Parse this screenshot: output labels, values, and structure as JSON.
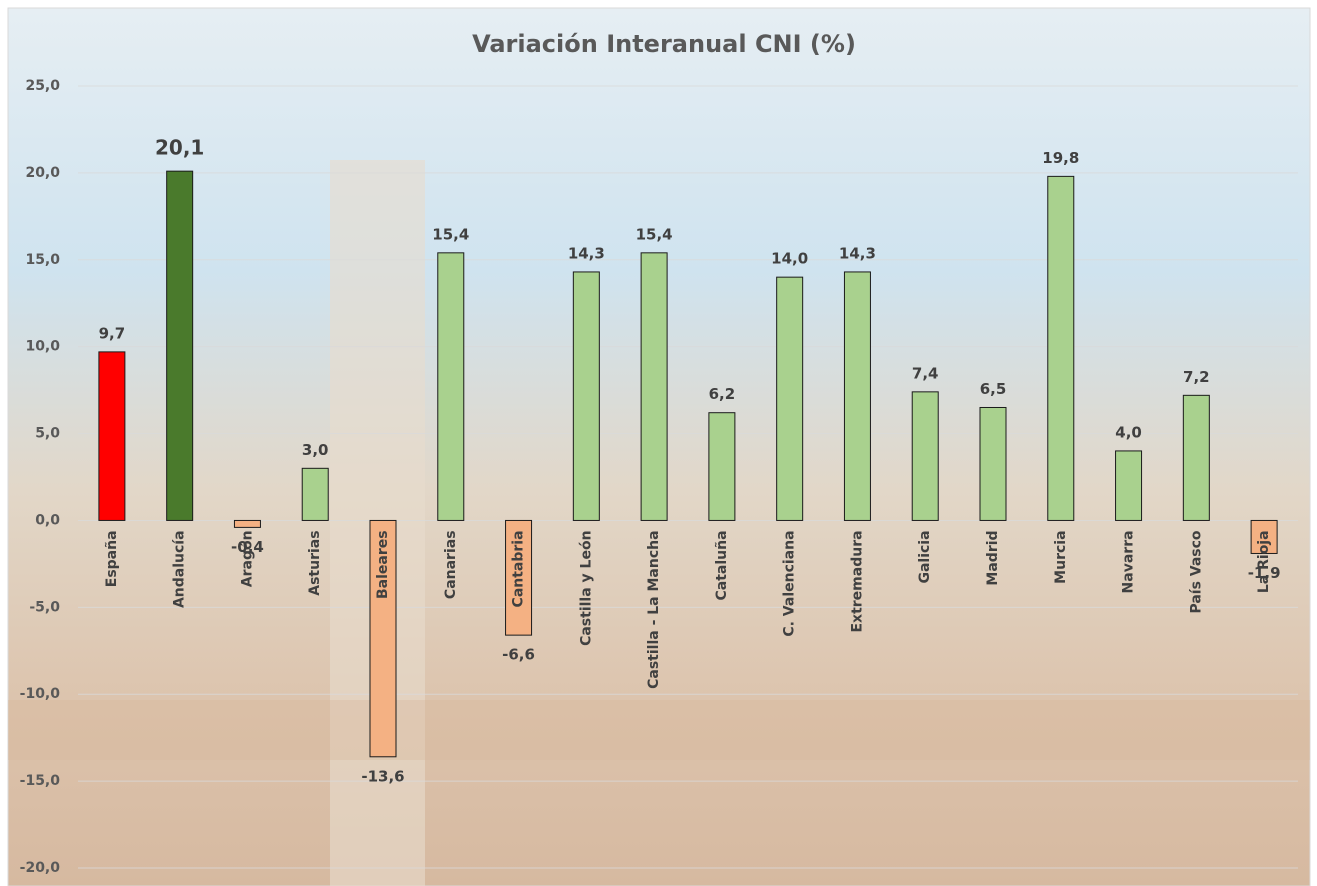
{
  "chart_data": {
    "type": "bar",
    "title": "Variación Interanual CNI (%)",
    "categories": [
      "España",
      "Andalucía",
      "Aragón",
      "Asturias",
      "Baleares",
      "Canarias",
      "Cantabria",
      "Castilla y León",
      "Castilla - La Mancha",
      "Cataluña",
      "C. Valenciana",
      "Extremadura",
      "Galicia",
      "Madrid",
      "Murcia",
      "Navarra",
      "País Vasco",
      "La Rioja"
    ],
    "values": [
      9.7,
      20.1,
      -0.4,
      3.0,
      -13.6,
      15.4,
      -6.6,
      14.3,
      15.4,
      6.2,
      14.0,
      14.3,
      7.4,
      6.5,
      19.8,
      4.0,
      7.2,
      -1.9
    ],
    "value_labels": [
      "9,7",
      "20,1",
      "-0,4",
      "3,0",
      "-13,6",
      "15,4",
      "-6,6",
      "14,3",
      "15,4",
      "6,2",
      "14,0",
      "14,3",
      "7,4",
      "6,5",
      "19,8",
      "4,0",
      "7,2",
      "-1,9"
    ],
    "colors": [
      "#ff0000",
      "#4a7a2c",
      "#f4b183",
      "#a9d18e",
      "#f4b183",
      "#a9d18e",
      "#f4b183",
      "#a9d18e",
      "#a9d18e",
      "#a9d18e",
      "#a9d18e",
      "#a9d18e",
      "#a9d18e",
      "#a9d18e",
      "#a9d18e",
      "#a9d18e",
      "#a9d18e",
      "#f4b183"
    ],
    "ylim": [
      -20,
      25
    ],
    "yticks": [
      {
        "value": -20,
        "label": "-20,0"
      },
      {
        "value": -15,
        "label": "-15,0"
      },
      {
        "value": -10,
        "label": "-10,0"
      },
      {
        "value": -5,
        "label": "-5,0"
      },
      {
        "value": 0,
        "label": "0,0"
      },
      {
        "value": 5,
        "label": "5,0"
      },
      {
        "value": 10,
        "label": "10,0"
      },
      {
        "value": 15,
        "label": "15,0"
      },
      {
        "value": 20,
        "label": "20,0"
      },
      {
        "value": 25,
        "label": "25,0"
      }
    ],
    "grid": true
  }
}
